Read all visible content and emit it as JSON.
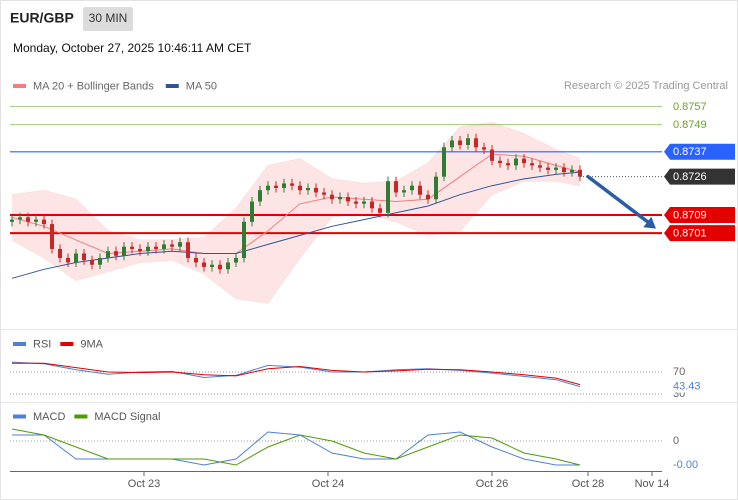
{
  "header": {
    "symbol": "EUR/GBP",
    "interval": "30 MIN",
    "timestamp": "Monday, October 27, 2025 10:46:11 AM CET"
  },
  "chart_data": [
    {
      "type": "candlestick",
      "credit": "Research © 2025 Trading Central",
      "x": [
        0,
        1,
        2,
        3,
        4,
        5,
        6,
        7,
        8,
        9,
        10,
        11,
        12,
        13,
        14,
        15,
        16,
        17,
        18,
        19,
        20,
        21,
        22,
        23,
        24,
        25,
        26,
        27,
        28,
        29,
        30,
        31,
        32,
        33,
        34,
        35,
        36,
        37,
        38,
        39,
        40,
        41,
        42,
        43,
        44,
        45,
        46,
        47,
        48,
        49,
        50,
        51,
        52,
        53,
        54,
        55,
        56,
        57,
        58,
        59,
        60,
        61,
        62,
        63,
        64,
        65,
        66,
        67,
        68,
        69,
        70,
        71
      ],
      "open": [
        0.8706,
        0.8707,
        0.8708,
        0.8706,
        0.8707,
        0.8705,
        0.8694,
        0.869,
        0.8688,
        0.8692,
        0.8689,
        0.8687,
        0.869,
        0.8693,
        0.8691,
        0.8695,
        0.8694,
        0.8693,
        0.8695,
        0.8694,
        0.8696,
        0.8695,
        0.8697,
        0.869,
        0.8688,
        0.8686,
        0.8687,
        0.8685,
        0.8688,
        0.869,
        0.8706,
        0.8715,
        0.872,
        0.8722,
        0.8721,
        0.8723,
        0.8722,
        0.872,
        0.8721,
        0.8719,
        0.8718,
        0.8716,
        0.8717,
        0.8715,
        0.8714,
        0.8715,
        0.8712,
        0.871,
        0.8724,
        0.8719,
        0.872,
        0.8722,
        0.8718,
        0.8716,
        0.8726,
        0.8739,
        0.8742,
        0.874,
        0.8743,
        0.8739,
        0.8738,
        0.8733,
        0.8732,
        0.8731,
        0.8734,
        0.8732,
        0.8731,
        0.873,
        0.8729,
        0.873,
        0.8728,
        0.8729
      ],
      "high": [
        0.8709,
        0.871,
        0.871,
        0.8709,
        0.8709,
        0.8707,
        0.8696,
        0.8692,
        0.8694,
        0.8694,
        0.8691,
        0.8692,
        0.8695,
        0.8695,
        0.8697,
        0.8697,
        0.8696,
        0.8697,
        0.8697,
        0.8698,
        0.8698,
        0.8699,
        0.8699,
        0.8692,
        0.869,
        0.8689,
        0.8689,
        0.869,
        0.8692,
        0.8708,
        0.8717,
        0.8722,
        0.8724,
        0.8724,
        0.8725,
        0.8725,
        0.8724,
        0.8723,
        0.8723,
        0.8721,
        0.872,
        0.8719,
        0.8719,
        0.8717,
        0.8717,
        0.8717,
        0.8714,
        0.8726,
        0.8726,
        0.8722,
        0.8724,
        0.8724,
        0.872,
        0.8728,
        0.8741,
        0.8744,
        0.8744,
        0.8745,
        0.8745,
        0.8741,
        0.874,
        0.8735,
        0.8734,
        0.8736,
        0.8736,
        0.8734,
        0.8733,
        0.8732,
        0.8732,
        0.8732,
        0.8731,
        0.8731
      ],
      "low": [
        0.8704,
        0.8705,
        0.8704,
        0.8704,
        0.8703,
        0.8692,
        0.8688,
        0.8686,
        0.8686,
        0.8687,
        0.8685,
        0.8685,
        0.8688,
        0.8689,
        0.8689,
        0.8692,
        0.8691,
        0.8691,
        0.8692,
        0.8692,
        0.8693,
        0.8693,
        0.8688,
        0.8686,
        0.8684,
        0.8684,
        0.8683,
        0.8683,
        0.8686,
        0.8688,
        0.8704,
        0.8713,
        0.8718,
        0.8719,
        0.8719,
        0.872,
        0.8718,
        0.8718,
        0.8717,
        0.8716,
        0.8714,
        0.8714,
        0.8713,
        0.8712,
        0.8712,
        0.871,
        0.8708,
        0.8708,
        0.8717,
        0.8717,
        0.8718,
        0.8716,
        0.8714,
        0.8714,
        0.8724,
        0.8737,
        0.8738,
        0.8738,
        0.8737,
        0.8736,
        0.8731,
        0.873,
        0.8729,
        0.8729,
        0.873,
        0.8729,
        0.8728,
        0.8727,
        0.8727,
        0.8726,
        0.8726,
        0.8724
      ],
      "close": [
        0.8707,
        0.8708,
        0.8706,
        0.8707,
        0.8705,
        0.8694,
        0.869,
        0.8688,
        0.8692,
        0.8689,
        0.8687,
        0.869,
        0.8693,
        0.8691,
        0.8695,
        0.8694,
        0.8693,
        0.8695,
        0.8694,
        0.8696,
        0.8695,
        0.8697,
        0.869,
        0.8688,
        0.8686,
        0.8687,
        0.8685,
        0.8688,
        0.869,
        0.8706,
        0.8715,
        0.872,
        0.8722,
        0.8721,
        0.8723,
        0.8722,
        0.872,
        0.8721,
        0.8719,
        0.8718,
        0.8716,
        0.8717,
        0.8715,
        0.8714,
        0.8715,
        0.8712,
        0.871,
        0.8724,
        0.8719,
        0.872,
        0.8722,
        0.8718,
        0.8716,
        0.8726,
        0.8739,
        0.8742,
        0.874,
        0.8743,
        0.8739,
        0.8738,
        0.8733,
        0.8732,
        0.8731,
        0.8734,
        0.8732,
        0.8731,
        0.873,
        0.8729,
        0.873,
        0.8728,
        0.8729,
        0.8726
      ],
      "up_color": "#2e7d32",
      "down_color": "#c62828",
      "xlim": [
        -0.25,
        81.25
      ],
      "xticks": [
        {
          "value": 16.5,
          "label": "Oct 23"
        },
        {
          "value": 39.5,
          "label": "Oct 24"
        },
        {
          "value": 60,
          "label": "Oct 26"
        },
        {
          "value": 72,
          "label": "Oct 28"
        },
        {
          "value": 80,
          "label": "Nov 14"
        }
      ],
      "ylim": [
        0.8659,
        0.8771
      ],
      "overlays": [
        {
          "name": "MA 20 + Bollinger Bands",
          "color": "#f47c7c",
          "band_color": "#fde0e0",
          "x": [
            0,
            4,
            8,
            12,
            16,
            20,
            24,
            28,
            32,
            36,
            40,
            44,
            48,
            52,
            56,
            60,
            64,
            68,
            71
          ],
          "values": [
            0.8708,
            0.8704,
            0.8698,
            0.8692,
            0.8693,
            0.8694,
            0.8692,
            0.8692,
            0.8702,
            0.8714,
            0.8717,
            0.8716,
            0.8715,
            0.8716,
            0.8726,
            0.8736,
            0.8735,
            0.8731,
            0.8728
          ],
          "upper": [
            0.8718,
            0.872,
            0.8716,
            0.8702,
            0.8698,
            0.8698,
            0.8699,
            0.8712,
            0.8731,
            0.8734,
            0.8725,
            0.8723,
            0.8724,
            0.8732,
            0.8748,
            0.875,
            0.8745,
            0.8738,
            0.8734
          ],
          "lower": [
            0.8698,
            0.869,
            0.868,
            0.8684,
            0.8688,
            0.8689,
            0.8683,
            0.8672,
            0.867,
            0.869,
            0.8708,
            0.871,
            0.8706,
            0.87,
            0.8702,
            0.8718,
            0.8724,
            0.8724,
            0.8722
          ]
        },
        {
          "name": "MA 50",
          "color": "#2f5597",
          "x": [
            0,
            4,
            8,
            12,
            16,
            20,
            24,
            28,
            32,
            36,
            40,
            44,
            48,
            52,
            56,
            60,
            64,
            68,
            71
          ],
          "values": [
            0.8681,
            0.8685,
            0.8688,
            0.869,
            0.8692,
            0.8693,
            0.8692,
            0.8692,
            0.8696,
            0.87,
            0.8704,
            0.8707,
            0.871,
            0.8713,
            0.8718,
            0.8722,
            0.8725,
            0.8727,
            0.8728
          ]
        }
      ],
      "levels": [
        {
          "value": 0.8757,
          "color": "#6aa523",
          "boxed": false,
          "thick": false
        },
        {
          "value": 0.8749,
          "color": "#6aa523",
          "boxed": false,
          "thick": false
        },
        {
          "value": 0.8737,
          "color": "#2962ff",
          "boxed": true,
          "thick": false
        },
        {
          "value": 0.8709,
          "color": "#e50000",
          "boxed": true,
          "thick": true
        },
        {
          "value": 0.8701,
          "color": "#e50000",
          "boxed": true,
          "thick": true
        }
      ],
      "current_price": 0.8726,
      "current_color": "#333333",
      "arrow": {
        "x": [
          72,
          80.5
        ],
        "y": [
          0.8726,
          0.8703
        ],
        "color": "#2a5ca8"
      }
    },
    {
      "type": "line",
      "x": [
        0,
        4,
        8,
        12,
        16,
        20,
        24,
        28,
        32,
        36,
        40,
        44,
        48,
        52,
        56,
        60,
        64,
        68,
        71
      ],
      "series": [
        {
          "name": "RSI",
          "color": "#4f7fd8",
          "values": [
            88,
            85,
            74,
            66,
            70,
            71,
            60,
            64,
            82,
            79,
            70,
            70,
            74,
            76,
            73,
            68,
            62,
            56,
            43.43
          ]
        },
        {
          "name": "9MA",
          "color": "#e00000",
          "values": [
            86,
            86,
            78,
            70,
            69,
            70,
            65,
            63,
            76,
            80,
            73,
            70,
            72,
            75,
            74,
            70,
            65,
            59,
            47
          ]
        }
      ],
      "ylim": [
        0,
        100
      ],
      "yticks": [
        70,
        30
      ]
    },
    {
      "type": "line",
      "x": [
        0,
        4,
        8,
        12,
        16,
        20,
        24,
        28,
        32,
        36,
        40,
        44,
        48,
        52,
        56,
        60,
        64,
        68,
        71
      ],
      "series": [
        {
          "name": "MACD",
          "color": "#4f7fd8",
          "values": [
            0.0001,
            0.0001,
            -0.0003,
            -0.0003,
            -0.0003,
            -0.0003,
            -0.0004,
            -0.0003,
            0.00015,
            0.0001,
            -0.0002,
            -0.0003,
            -0.0003,
            0.0001,
            0.00015,
            -0.0001,
            -0.0003,
            -0.0004,
            -0.0004
          ],
          "value_labels": [
            null,
            null,
            null,
            null,
            null,
            null,
            null,
            null,
            null,
            null,
            null,
            null,
            null,
            null,
            null,
            null,
            null,
            null,
            "-0.00"
          ]
        },
        {
          "name": "MACD Signal",
          "color": "#4e9a06",
          "values": [
            0.0002,
            0.0001,
            -0.0001,
            -0.0003,
            -0.0003,
            -0.0003,
            -0.0003,
            -0.0004,
            -0.0001,
            0.0001,
            0,
            -0.0002,
            -0.0003,
            -0.0001,
            0.0001,
            5e-05,
            -0.0002,
            -0.0003,
            -0.0004
          ]
        }
      ],
      "ylim": [
        -0.0005,
        0.0005
      ],
      "yticks": [
        0
      ]
    }
  ]
}
